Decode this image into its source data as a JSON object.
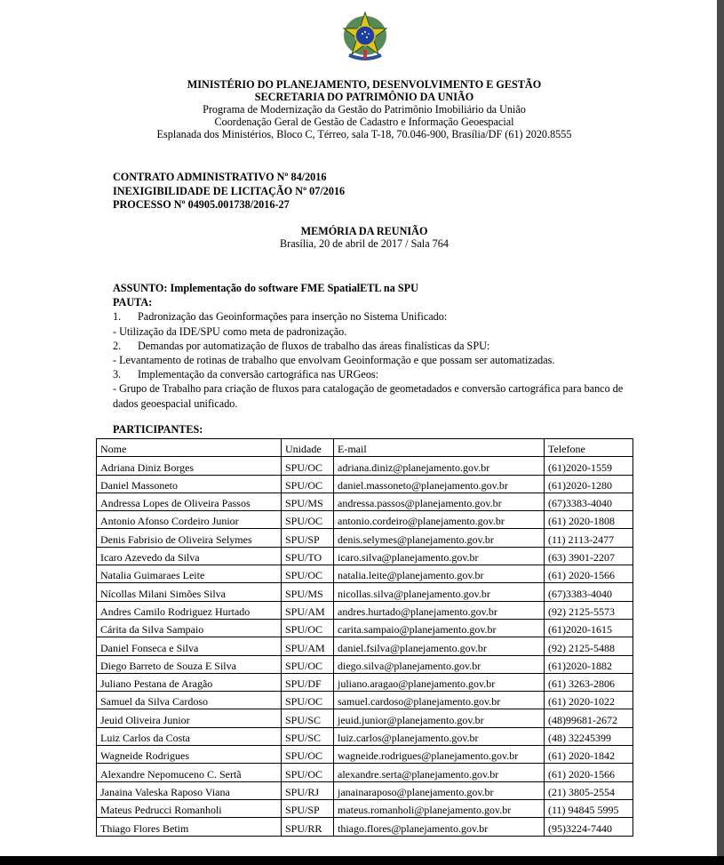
{
  "header": {
    "ministry": "MINISTÉRIO DO PLANEJAMENTO, DESENVOLVIMENTO E GESTÃO",
    "secretariat": "SECRETARIA DO PATRIMÔNIO DA UNIÃO",
    "program": "Programa de Modernização da Gestão do Patrimônio Imobiliário da União",
    "coordination": "Coordenação Geral de Gestão de Cadastro e Informação Geoespacial",
    "address": "Esplanada dos Ministérios, Bloco C, Térreo, sala T-18, 70.046-900, Brasília/DF (61) 2020.8555"
  },
  "contract": {
    "line1": "CONTRATO ADMINISTRATIVO Nº 84/2016",
    "line2": "INEXIGIBILIDADE DE LICITAÇÃO Nº 07/2016",
    "line3": "PROCESSO Nº 04905.001738/2016-27"
  },
  "title": "MEMÓRIA DA REUNIÃO",
  "subtitle": "Brasília, 20 de abril de 2017 / Sala 764",
  "assunto": "ASSUNTO: Implementação do software FME SpatialETL na SPU",
  "pauta_label": "PAUTA:",
  "pauta": [
    {
      "num": "1.",
      "item": "Padronização das Geoinformações para inserção no Sistema Unificado:",
      "detail": "- Utilização da IDE/SPU como meta de padronização."
    },
    {
      "num": "2.",
      "item": "Demandas por automatização de fluxos de trabalho das áreas finalísticas da SPU:",
      "detail": "- Levantamento de rotinas de trabalho que envolvam Geoinformação e que possam ser automatizadas."
    },
    {
      "num": "3.",
      "item": "Implementação da conversão cartográfica nas URGeos:",
      "detail": "- Grupo de Trabalho para criação de fluxos para catalogação de geometadados e conversão cartográfica para banco de dados geoespacial unificado."
    }
  ],
  "participants_label": "PARTICIPANTES:",
  "table": {
    "headers": [
      "Nome",
      "Unidade",
      "E-mail",
      "Telefone"
    ],
    "rows": [
      [
        "Adriana Diniz Borges",
        "SPU/OC",
        "adriana.diniz@planejamento.gov.br",
        "(61)2020-1559"
      ],
      [
        "Daniel Massoneto",
        "SPU/OC",
        "daniel.massoneto@planejamento.gov.br",
        "(61)2020-1280"
      ],
      [
        "Andressa Lopes de Oliveira Passos",
        "SPU/MS",
        "andressa.passos@planejamento.gov.br",
        "(67)3383-4040"
      ],
      [
        "Antonio Afonso Cordeiro Junior",
        "SPU/OC",
        "antonio.cordeiro@planejamento.gov.br",
        "(61) 2020-1808"
      ],
      [
        "Denis Fabrisio de Oliveira Selymes",
        "SPU/SP",
        "denis.selymes@planejamento.gov.br",
        "(11) 2113-2477"
      ],
      [
        "Icaro Azevedo da Silva",
        "SPU/TO",
        "icaro.silva@planejamento.gov.br",
        "(63) 3901-2207"
      ],
      [
        "Natalia Guimaraes Leite",
        "SPU/OC",
        "natalia.leite@planejamento.gov.br",
        "(61) 2020-1566"
      ],
      [
        "Nícollas Milani Simões Silva",
        "SPU/MS",
        "nicollas.silva@planejamento.gov.br",
        "(67)3383-4040"
      ],
      [
        "Andres Camilo Rodriguez Hurtado",
        "SPU/AM",
        "andres.hurtado@planejamento.gov.br",
        "(92) 2125-5573"
      ],
      [
        "Cárita da Silva Sampaio",
        "SPU/OC",
        "carita.sampaio@planejamento.gov.br",
        "(61)2020-1615"
      ],
      [
        "Daniel Fonseca e Silva",
        "SPU/AM",
        "daniel.fsilva@planejamento.gov.br",
        "(92) 2125-5488"
      ],
      [
        "Diego Barreto de Souza E Silva",
        "SPU/OC",
        "diego.silva@planejamento.gov.br",
        "(61)2020-1882"
      ],
      [
        "Juliano Pestana de Aragão",
        "SPU/DF",
        "juliano.aragao@planejamento.gov.br",
        "(61) 3263-2806"
      ],
      [
        "Samuel da Silva Cardoso",
        "SPU/OC",
        "samuel.cardoso@planejamento.gov.br",
        "(61) 2020-1022"
      ],
      [
        "Jeuid Oliveira Junior",
        "SPU/SC",
        "jeuid.junior@planejamento.gov.br",
        "(48)99681-2672"
      ],
      [
        "Luiz Carlos da Costa",
        "SPU/SC",
        "luiz.carlos@planejamento.gov.br",
        "(48) 32245399"
      ],
      [
        "Wagneide Rodrigues",
        "SPU/OC",
        "wagneide.rodrigues@planejamento.gov.br",
        "(61) 2020-1842"
      ],
      [
        "Alexandre Nepomuceno C. Sertã",
        "SPU/OC",
        "alexandre.serta@planejamento.gov.br",
        "(61) 2020-1566"
      ],
      [
        "Janaina Valeska Raposo Viana",
        "SPU/RJ",
        "janainaraposo@planejamento.gov.br",
        "(21) 3805-2554"
      ],
      [
        "Mateus Pedrucci Romanholi",
        "SPU/SP",
        "mateus.romanholi@planejamento.gov.br",
        "(11) 94845 5995"
      ],
      [
        "Thiago Flores Betim",
        "SPU/RR",
        "thiago.flores@planejamento.gov.br",
        "(95)3224-7440"
      ]
    ]
  }
}
